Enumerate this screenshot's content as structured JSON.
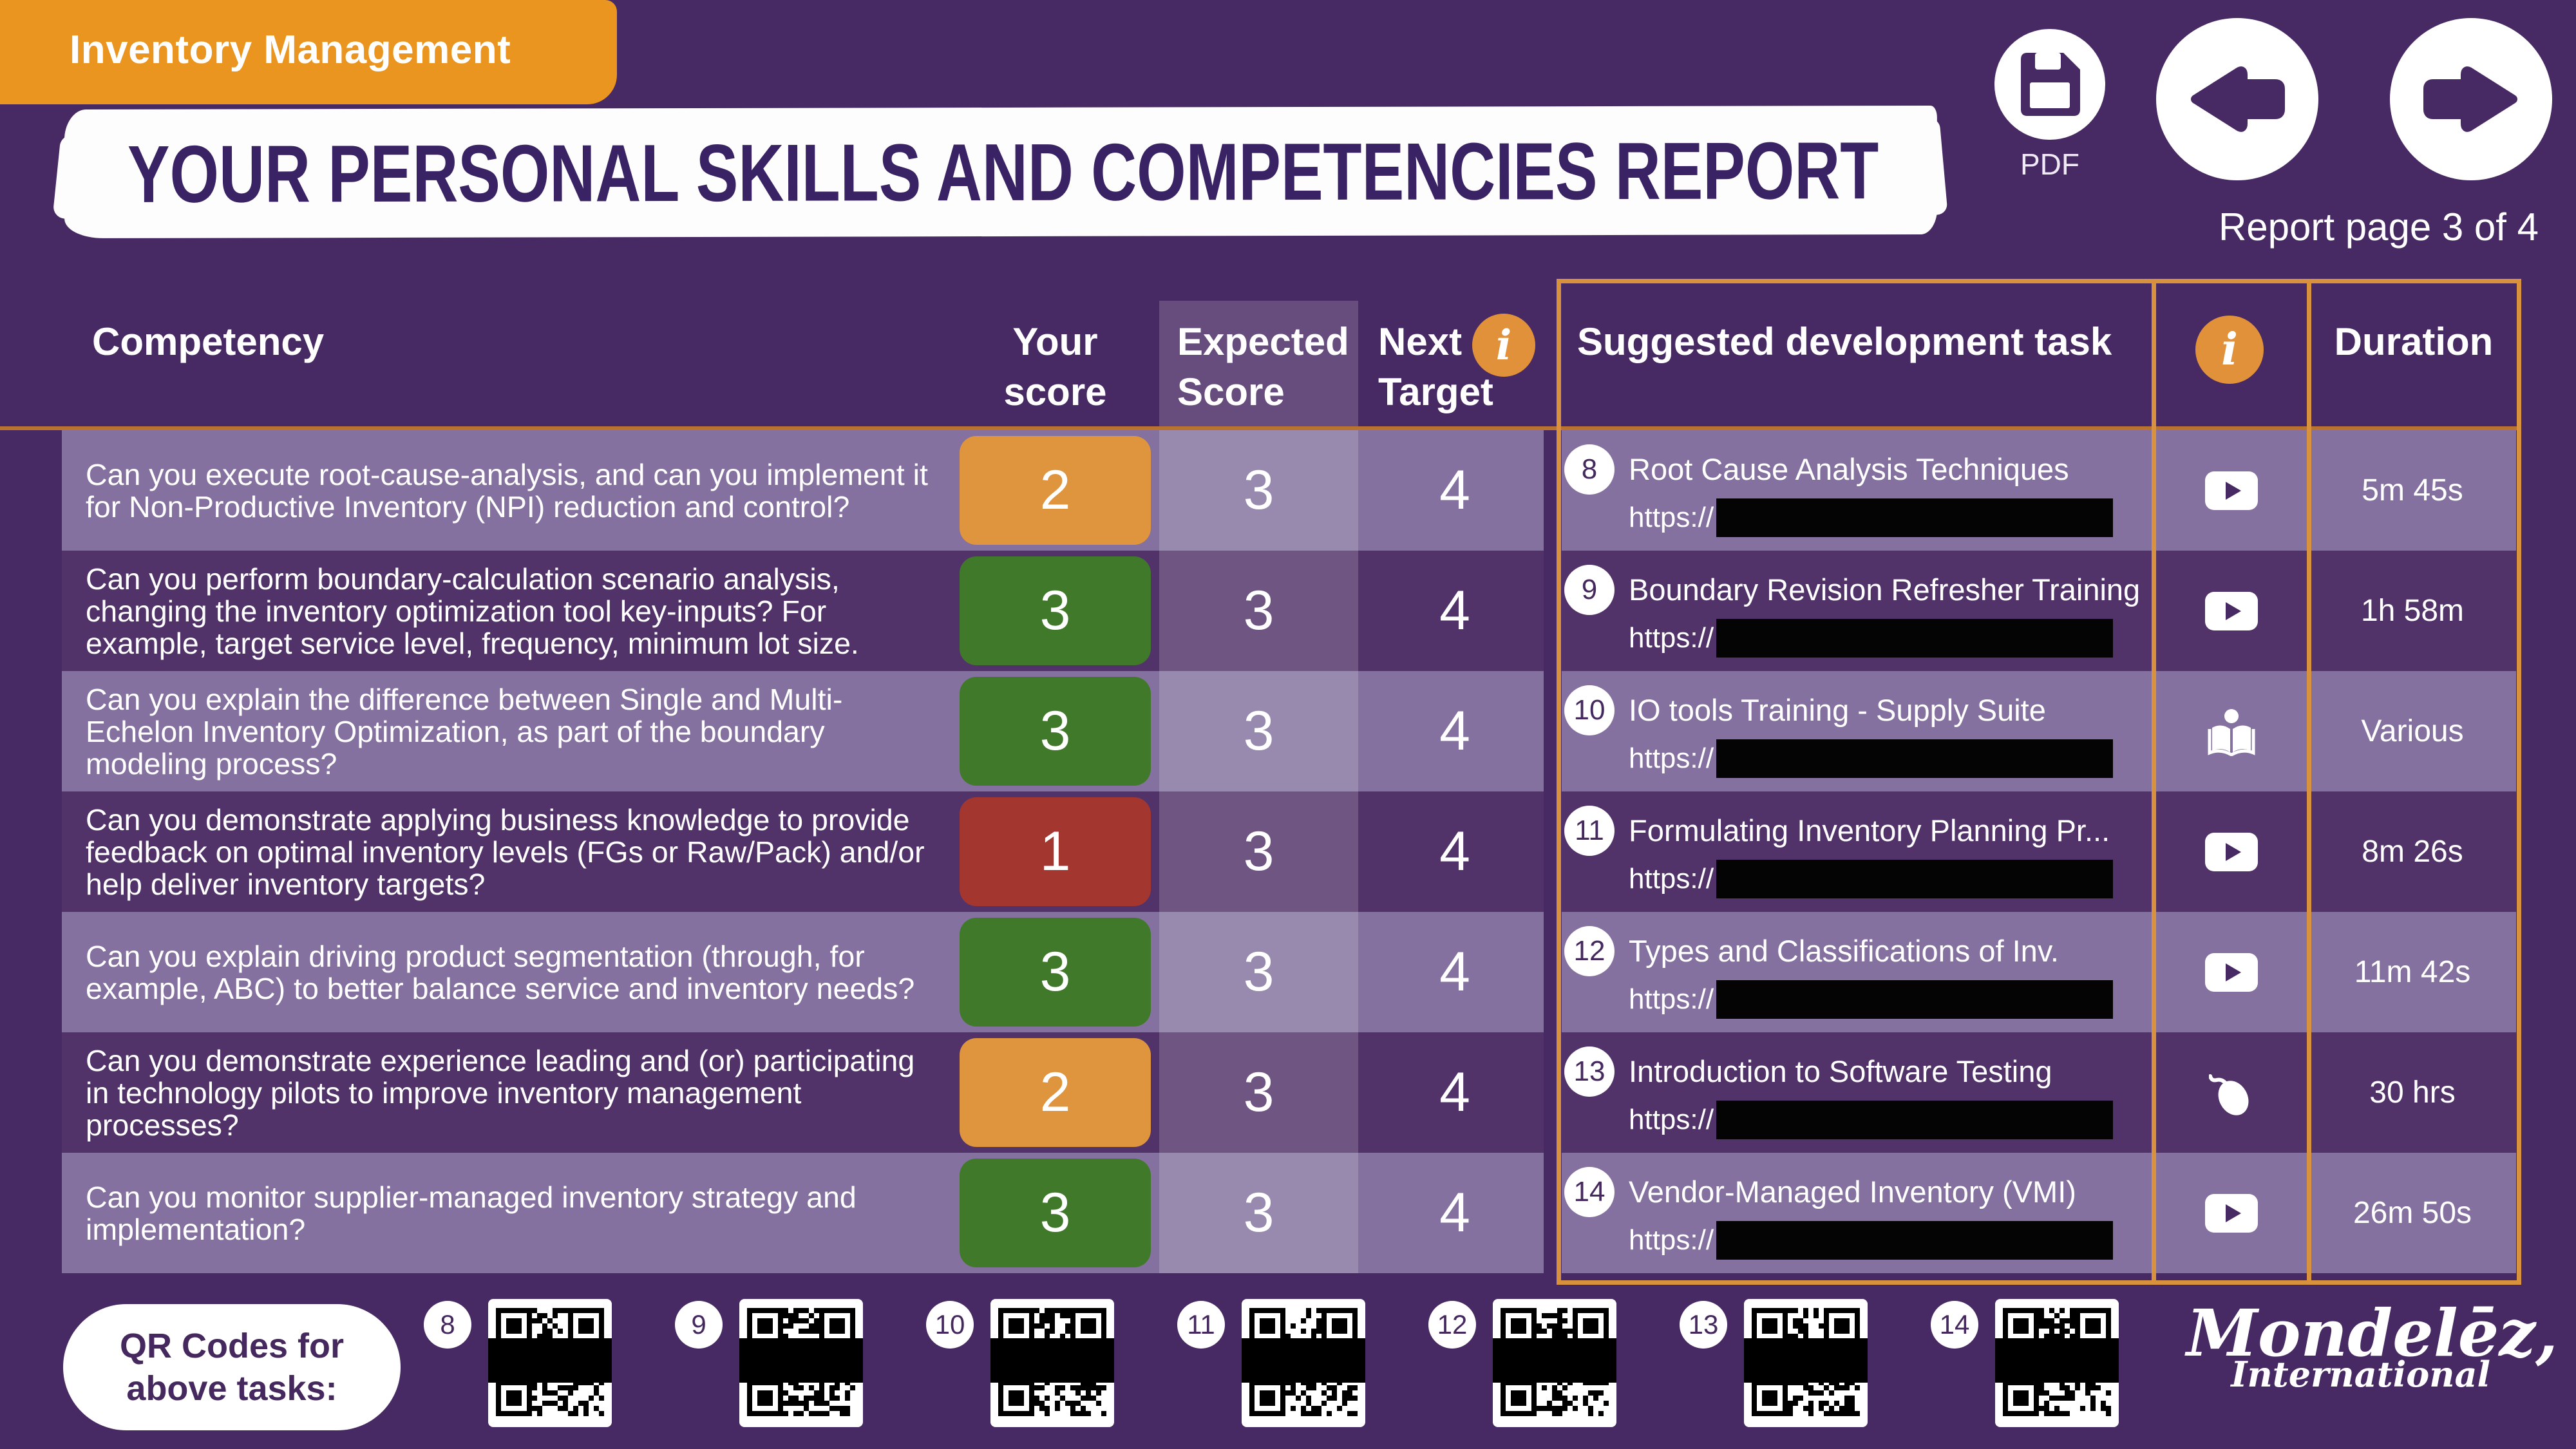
{
  "header": {
    "tag": "Inventory Management",
    "title": "YOUR PERSONAL SKILLS AND COMPETENCIES REPORT",
    "pdf_label": "PDF",
    "report_page": "Report page 3 of 4"
  },
  "table": {
    "headers": {
      "competency": "Competency",
      "your_score": "Your score",
      "expected_score": "Expected Score",
      "next_target": "Next Target",
      "info_icon": "i"
    },
    "rows": [
      {
        "competency": "Can you execute root-cause-analysis, and can you implement it for Non-Productive Inventory (NPI) reduction and control?",
        "your_score": "2",
        "score_color": "#DF953E",
        "expected_score": "3",
        "next_target": "4"
      },
      {
        "competency": "Can  you perform boundary-calculation scenario analysis, changing the inventory optimization tool key-inputs? For example, target service level, frequency, minimum lot size.",
        "your_score": "3",
        "score_color": "#41792A",
        "expected_score": "3",
        "next_target": "4"
      },
      {
        "competency": "Can you explain the difference between Single and Multi-Echelon Inventory Optimization, as part of the boundary modeling process?",
        "your_score": "3",
        "score_color": "#41792A",
        "expected_score": "3",
        "next_target": "4"
      },
      {
        "competency": "Can you demonstrate applying business knowledge to provide feedback on optimal inventory levels (FGs or Raw/Pack) and/or help deliver inventory targets?",
        "your_score": "1",
        "score_color": "#A43630",
        "expected_score": "3",
        "next_target": "4"
      },
      {
        "competency": "Can you explain driving product segmentation (through, for example, ABC) to better balance service and inventory needs?",
        "your_score": "3",
        "score_color": "#41792A",
        "expected_score": "3",
        "next_target": "4"
      },
      {
        "competency": "Can you demonstrate experience leading and (or) participating in technology pilots to improve inventory management processes?",
        "your_score": "2",
        "score_color": "#DF953E",
        "expected_score": "3",
        "next_target": "4"
      },
      {
        "competency": "Can you monitor supplier-managed inventory strategy and implementation?",
        "your_score": "3",
        "score_color": "#41792A",
        "expected_score": "3",
        "next_target": "4"
      }
    ]
  },
  "tasks": {
    "header": "Suggested development task",
    "info_icon": "i",
    "duration_header": "Duration",
    "url_prefix": "https://",
    "items": [
      {
        "num": "8",
        "title": "Root Cause Analysis Techniques",
        "icon": "play",
        "duration": "5m 45s"
      },
      {
        "num": "9",
        "title": "Boundary Revision Refresher Training",
        "icon": "play",
        "duration": "1h 58m"
      },
      {
        "num": "10",
        "title": "IO tools Training - Supply Suite",
        "icon": "reader",
        "duration": "Various"
      },
      {
        "num": "11",
        "title": "Formulating Inventory Planning Pr...",
        "icon": "play",
        "duration": "8m 26s"
      },
      {
        "num": "12",
        "title": "Types and Classifications of Inv.",
        "icon": "play",
        "duration": "11m 42s"
      },
      {
        "num": "13",
        "title": "Introduction to Software Testing",
        "icon": "mouse",
        "duration": "30 hrs"
      },
      {
        "num": "14",
        "title": "Vendor-Managed Inventory (VMI)",
        "icon": "play",
        "duration": "26m 50s"
      }
    ]
  },
  "qr_section": {
    "label_line1": "QR Codes for",
    "label_line2": "above  tasks:",
    "codes": [
      {
        "num": "8"
      },
      {
        "num": "9"
      },
      {
        "num": "10"
      },
      {
        "num": "11"
      },
      {
        "num": "12"
      },
      {
        "num": "13"
      },
      {
        "num": "14"
      }
    ]
  },
  "logo": {
    "brand": "Mondelēz,",
    "sub": "International"
  }
}
